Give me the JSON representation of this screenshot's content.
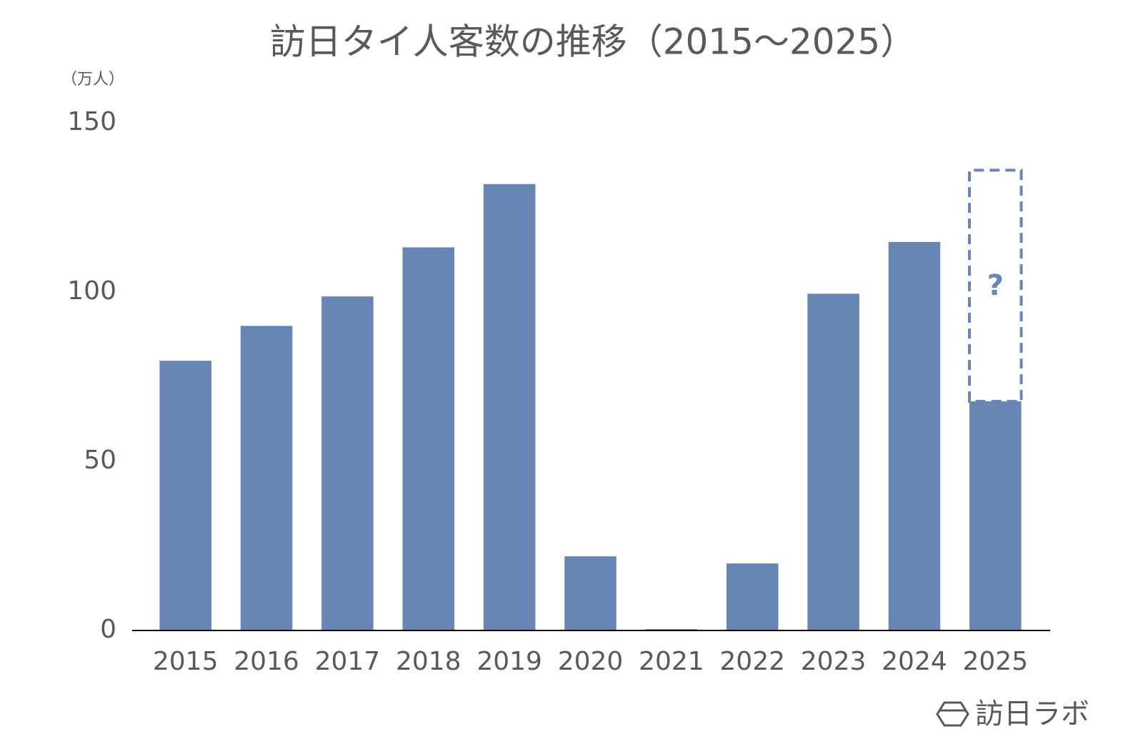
{
  "chart_data": {
    "type": "bar",
    "title": "訪日タイ人客数の推移（2015～2025）",
    "y_axis_label": "（万人）",
    "categories": [
      "2015",
      "2016",
      "2017",
      "2018",
      "2019",
      "2020",
      "2021",
      "2022",
      "2023",
      "2024",
      "2025"
    ],
    "values": [
      79.7,
      90,
      98.7,
      113.2,
      131.9,
      21.9,
      0.4,
      19.8,
      99.5,
      114.8,
      67.7
    ],
    "outline_values": [
      null,
      null,
      null,
      null,
      null,
      null,
      null,
      null,
      null,
      null,
      136
    ],
    "outline_label": "?",
    "color": "#6886b4",
    "ylim": [
      0,
      150
    ],
    "yticks": [
      0,
      50,
      100,
      150
    ],
    "grid": false,
    "source": "訪日ラボ"
  }
}
